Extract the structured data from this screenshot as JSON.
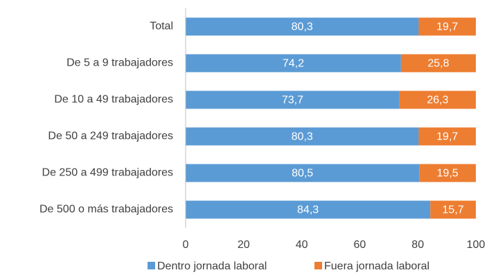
{
  "chart_data": {
    "type": "bar",
    "orientation": "horizontal",
    "stacked": true,
    "categories": [
      "Total",
      "De 5 a 9 trabajadores",
      "De 10 a 49 trabajadores",
      "De 50 a 249 trabajadores",
      "De 250 a 499 trabajadores",
      "De 500 o más trabajadores"
    ],
    "series": [
      {
        "name": "Dentro jornada laboral",
        "color": "#5b9bd5",
        "values": [
          80.3,
          74.2,
          73.7,
          80.3,
          80.5,
          84.3
        ],
        "value_labels": [
          "80,3",
          "74,2",
          "73,7",
          "80,3",
          "80,5",
          "84,3"
        ]
      },
      {
        "name": "Fuera jornada laboral",
        "color": "#ed7d31",
        "values": [
          19.7,
          25.8,
          26.3,
          19.7,
          19.5,
          15.7
        ],
        "value_labels": [
          "19,7",
          "25,8",
          "26,3",
          "19,7",
          "19,5",
          "15,7"
        ]
      }
    ],
    "xlim": [
      0,
      100
    ],
    "xticks": [
      0,
      20,
      40,
      60,
      80,
      100
    ],
    "grid": false,
    "legend": "bottom"
  }
}
